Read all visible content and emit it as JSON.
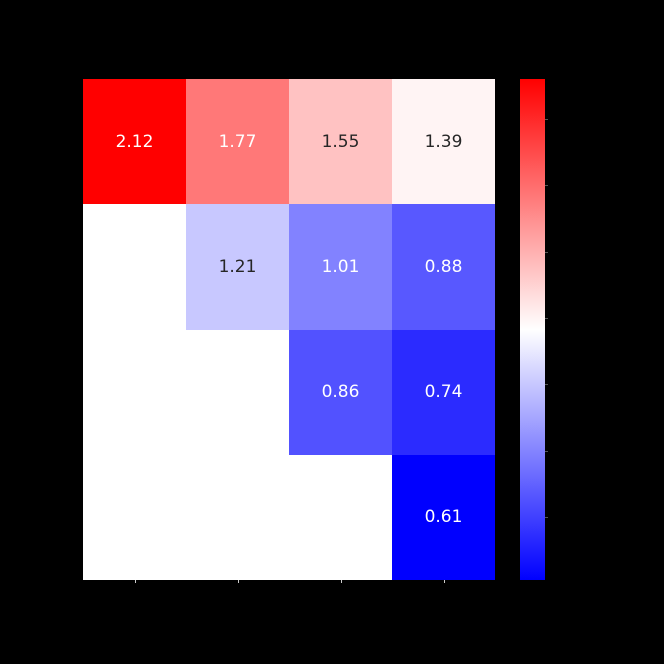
{
  "chart_data": {
    "type": "heatmap",
    "title": "",
    "xlabel": "",
    "ylabel": "",
    "rows": 4,
    "cols": 4,
    "cells": [
      {
        "row": 0,
        "col": 0,
        "value": "2.12",
        "color": "#ff0000",
        "text_color": "#ffffff"
      },
      {
        "row": 0,
        "col": 1,
        "value": "1.77",
        "color": "#ff7878",
        "text_color": "#ffffff"
      },
      {
        "row": 0,
        "col": 2,
        "value": "1.55",
        "color": "#ffc2c2",
        "text_color": "#262626"
      },
      {
        "row": 0,
        "col": 3,
        "value": "1.39",
        "color": "#fff4f4",
        "text_color": "#262626"
      },
      {
        "row": 1,
        "col": 1,
        "value": "1.21",
        "color": "#c8c8ff",
        "text_color": "#262626"
      },
      {
        "row": 1,
        "col": 2,
        "value": "1.01",
        "color": "#8282ff",
        "text_color": "#ffffff"
      },
      {
        "row": 1,
        "col": 3,
        "value": "0.88",
        "color": "#5858ff",
        "text_color": "#ffffff"
      },
      {
        "row": 2,
        "col": 2,
        "value": "0.86",
        "color": "#5252ff",
        "text_color": "#ffffff"
      },
      {
        "row": 2,
        "col": 3,
        "value": "0.74",
        "color": "#2b2bff",
        "text_color": "#ffffff"
      },
      {
        "row": 3,
        "col": 3,
        "value": "0.61",
        "color": "#0000ff",
        "text_color": "#ffffff"
      }
    ],
    "matrix": [
      [
        2.12,
        1.77,
        1.55,
        1.39
      ],
      [
        null,
        1.21,
        1.01,
        0.88
      ],
      [
        null,
        null,
        0.86,
        0.74
      ],
      [
        null,
        null,
        null,
        0.61
      ]
    ],
    "colormap": "bwr",
    "colorbar": {
      "vmin": 0.61,
      "vmax": 2.12,
      "ticks": [
        2.0,
        1.8,
        1.6,
        1.4,
        1.2,
        1.0,
        0.8
      ]
    },
    "masked_color": "#ffffff",
    "background": "#000000"
  }
}
